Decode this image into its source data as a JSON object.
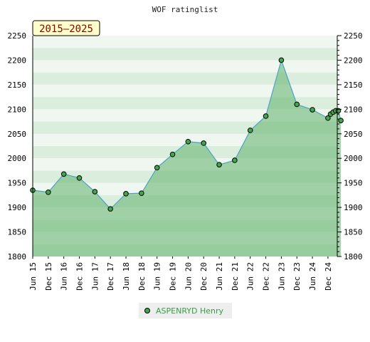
{
  "chart_data": {
    "type": "area",
    "title": "WOF ratinglist",
    "period_label": "2015–2025",
    "xlabel": "",
    "ylabel": "",
    "ylim": [
      1800,
      2250
    ],
    "yticks": [
      1800,
      1850,
      1900,
      1950,
      2000,
      2050,
      2100,
      2150,
      2200,
      2250
    ],
    "x_tick_labels": [
      "Jun 15",
      "Dec 15",
      "Jun 16",
      "Dec 16",
      "Jun 17",
      "Dec 17",
      "Jun 18",
      "Dec 18",
      "Jun 19",
      "Dec 19",
      "Jun 20",
      "Dec 20",
      "Jun 21",
      "Dec 21",
      "Jun 22",
      "Dec 22",
      "Jun 23",
      "Dec 23",
      "Jun 24",
      "Dec 24"
    ],
    "grid": "horizontal bands",
    "legend_position": "bottom-center",
    "series": [
      {
        "name": "ASPENRYD Henry",
        "x": [
          "Jun 15",
          "Dec 15",
          "Jun 16",
          "Dec 16",
          "Jun 17",
          "Dec 17",
          "Jun 18",
          "Dec 18",
          "Jun 19",
          "Dec 19",
          "Jun 20",
          "Dec 20",
          "Jun 21",
          "Dec 21",
          "Jun 22",
          "Dec 22",
          "Jun 23",
          "Dec 23",
          "Jun 24",
          "Dec 24",
          "Jan 25",
          "Feb 25",
          "Mar 25",
          "Apr 25",
          "May 25"
        ],
        "values": [
          1935,
          1931,
          1968,
          1960,
          1932,
          1897,
          1928,
          1929,
          1981,
          2008,
          2034,
          2031,
          1987,
          1996,
          2057,
          2086,
          2200,
          2110,
          2099,
          2082,
          2090,
          2094,
          2097,
          2097,
          2077
        ]
      }
    ]
  },
  "colors": {
    "band_light": "#f0f7f0",
    "band_dark": "#dbeedd",
    "area_fill": "#5fb36a",
    "line": "#4aa3c8",
    "marker_fill": "#3fa84a",
    "label_bg": "#ffffcc",
    "label_text": "#880000",
    "legend_text": "#3a9a4a",
    "legend_bg": "#eeeeee"
  }
}
